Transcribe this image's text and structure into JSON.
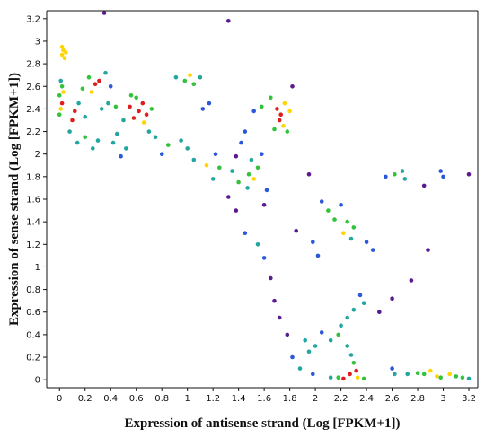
{
  "chart_data": {
    "type": "scatter",
    "title": "",
    "xlabel": "Expression of antisense strand (Log [FPKM+1])",
    "ylabel": "Expression of sense strand (Log [FPKM+1])",
    "xlim": [
      -0.1,
      3.27
    ],
    "ylim": [
      -0.07,
      3.27
    ],
    "x_ticks": [
      "0",
      "0.2",
      "0.4",
      "0.6",
      "0.8",
      "1",
      "1.2",
      "1.4",
      "1.6",
      "1.8",
      "2",
      "2.2",
      "2.4",
      "2.6",
      "2.8",
      "3",
      "3.2"
    ],
    "y_ticks": [
      "0",
      "0.2",
      "0.4",
      "0.6",
      "0.8",
      "1",
      "1.2",
      "1.4",
      "1.6",
      "1.8",
      "2",
      "2.2",
      "2.4",
      "2.6",
      "2.8",
      "3",
      "3.2"
    ],
    "grid": false,
    "legend": "none",
    "color_encoding": "point density",
    "colors": {
      "lowest_density": "#5b1a8f",
      "low_density": "#2a58d8",
      "mid_density": "#22a6a0",
      "medium_density": "#33c23b",
      "high_density": "#ffd400",
      "highest_density": "#e01d1d"
    },
    "series": [
      {
        "points": [
          [
            0.35,
            3.25
          ],
          [
            1.32,
            3.18
          ],
          [
            0.02,
            2.95
          ],
          [
            0.03,
            2.92
          ],
          [
            0.02,
            2.88
          ],
          [
            0.04,
            2.85
          ],
          [
            0.05,
            2.9
          ],
          [
            0.01,
            2.65
          ],
          [
            0.02,
            2.6
          ],
          [
            0.03,
            2.55
          ],
          [
            0.0,
            2.52
          ],
          [
            0.02,
            2.45
          ],
          [
            0.01,
            2.4
          ],
          [
            0.0,
            2.35
          ],
          [
            0.36,
            2.72
          ],
          [
            0.23,
            2.68
          ],
          [
            0.28,
            2.62
          ],
          [
            0.31,
            2.65
          ],
          [
            0.4,
            2.6
          ],
          [
            0.18,
            2.58
          ],
          [
            0.25,
            2.55
          ],
          [
            0.56,
            2.52
          ],
          [
            0.6,
            2.5
          ],
          [
            0.65,
            2.45
          ],
          [
            0.55,
            2.42
          ],
          [
            0.62,
            2.38
          ],
          [
            0.68,
            2.35
          ],
          [
            0.58,
            2.32
          ],
          [
            0.72,
            2.4
          ],
          [
            0.5,
            2.3
          ],
          [
            0.66,
            2.28
          ],
          [
            0.44,
            2.42
          ],
          [
            0.38,
            2.45
          ],
          [
            0.33,
            2.4
          ],
          [
            0.15,
            2.45
          ],
          [
            0.12,
            2.38
          ],
          [
            0.2,
            2.33
          ],
          [
            0.1,
            2.3
          ],
          [
            0.91,
            2.68
          ],
          [
            0.98,
            2.65
          ],
          [
            1.05,
            2.62
          ],
          [
            1.1,
            2.68
          ],
          [
            1.02,
            2.7
          ],
          [
            1.17,
            2.45
          ],
          [
            1.12,
            2.4
          ],
          [
            1.52,
            2.38
          ],
          [
            1.58,
            2.42
          ],
          [
            1.7,
            2.4
          ],
          [
            1.72,
            2.3
          ],
          [
            1.75,
            2.25
          ],
          [
            1.78,
            2.2
          ],
          [
            1.68,
            2.22
          ],
          [
            1.73,
            2.35
          ],
          [
            1.82,
            2.6
          ],
          [
            1.76,
            2.45
          ],
          [
            1.8,
            2.38
          ],
          [
            1.65,
            2.5
          ],
          [
            1.45,
            2.2
          ],
          [
            1.42,
            2.1
          ],
          [
            1.38,
            1.98
          ],
          [
            1.35,
            1.85
          ],
          [
            1.48,
            1.82
          ],
          [
            1.52,
            1.78
          ],
          [
            1.4,
            1.75
          ],
          [
            1.47,
            1.7
          ],
          [
            1.55,
            1.88
          ],
          [
            1.5,
            1.95
          ],
          [
            1.58,
            2.0
          ],
          [
            1.62,
            1.68
          ],
          [
            1.6,
            1.55
          ],
          [
            1.32,
            1.62
          ],
          [
            1.38,
            1.5
          ],
          [
            1.95,
            1.82
          ],
          [
            2.05,
            1.58
          ],
          [
            2.1,
            1.5
          ],
          [
            2.15,
            1.42
          ],
          [
            2.2,
            1.55
          ],
          [
            2.25,
            1.4
          ],
          [
            2.3,
            1.35
          ],
          [
            2.22,
            1.3
          ],
          [
            2.28,
            1.25
          ],
          [
            1.85,
            1.32
          ],
          [
            1.98,
            1.22
          ],
          [
            2.02,
            1.1
          ],
          [
            2.4,
            1.22
          ],
          [
            2.45,
            1.15
          ],
          [
            2.55,
            1.8
          ],
          [
            2.62,
            1.82
          ],
          [
            2.68,
            1.85
          ],
          [
            2.7,
            1.78
          ],
          [
            2.85,
            1.72
          ],
          [
            2.98,
            1.85
          ],
          [
            3.0,
            1.8
          ],
          [
            3.2,
            1.82
          ],
          [
            2.88,
            1.15
          ],
          [
            2.75,
            0.88
          ],
          [
            2.6,
            0.72
          ],
          [
            2.5,
            0.6
          ],
          [
            2.35,
            0.75
          ],
          [
            2.38,
            0.68
          ],
          [
            2.3,
            0.62
          ],
          [
            2.25,
            0.55
          ],
          [
            2.2,
            0.48
          ],
          [
            2.18,
            0.4
          ],
          [
            2.12,
            0.35
          ],
          [
            2.05,
            0.42
          ],
          [
            2.0,
            0.3
          ],
          [
            1.95,
            0.25
          ],
          [
            1.92,
            0.35
          ],
          [
            2.25,
            0.3
          ],
          [
            2.28,
            0.22
          ],
          [
            2.3,
            0.15
          ],
          [
            2.32,
            0.08
          ],
          [
            2.27,
            0.05
          ],
          [
            2.33,
            0.02
          ],
          [
            2.12,
            0.02
          ],
          [
            2.18,
            0.02
          ],
          [
            2.22,
            0.01
          ],
          [
            2.38,
            0.01
          ],
          [
            2.6,
            0.1
          ],
          [
            2.62,
            0.05
          ],
          [
            2.72,
            0.05
          ],
          [
            2.8,
            0.06
          ],
          [
            2.85,
            0.05
          ],
          [
            2.9,
            0.08
          ],
          [
            2.95,
            0.03
          ],
          [
            2.98,
            0.02
          ],
          [
            3.05,
            0.05
          ],
          [
            3.1,
            0.03
          ],
          [
            3.15,
            0.02
          ],
          [
            3.2,
            0.01
          ],
          [
            1.98,
            0.05
          ],
          [
            1.88,
            0.1
          ],
          [
            1.82,
            0.2
          ],
          [
            1.78,
            0.4
          ],
          [
            1.72,
            0.55
          ],
          [
            1.68,
            0.7
          ],
          [
            1.65,
            0.9
          ],
          [
            1.6,
            1.08
          ],
          [
            1.55,
            1.2
          ],
          [
            1.45,
            1.3
          ],
          [
            1.22,
            2.0
          ],
          [
            1.25,
            1.88
          ],
          [
            1.2,
            1.78
          ],
          [
            1.15,
            1.9
          ],
          [
            1.05,
            1.95
          ],
          [
            1.0,
            2.05
          ],
          [
            0.95,
            2.12
          ],
          [
            0.85,
            2.08
          ],
          [
            0.8,
            2.0
          ],
          [
            0.75,
            2.15
          ],
          [
            0.7,
            2.2
          ],
          [
            0.45,
            2.18
          ],
          [
            0.42,
            2.1
          ],
          [
            0.52,
            2.05
          ],
          [
            0.48,
            1.98
          ],
          [
            0.3,
            2.12
          ],
          [
            0.26,
            2.05
          ],
          [
            0.2,
            2.15
          ],
          [
            0.14,
            2.1
          ],
          [
            0.08,
            2.2
          ]
        ]
      }
    ]
  }
}
